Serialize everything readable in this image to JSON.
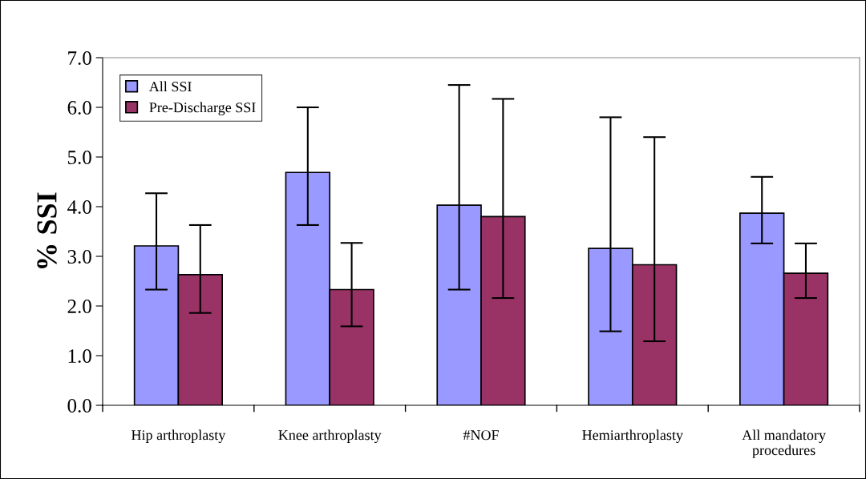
{
  "chart_data": {
    "type": "bar",
    "ylabel": "% SSI",
    "categories": [
      "Hip arthroplasty",
      "Knee arthroplasty",
      "#NOF",
      "Hemiarthroplasty",
      "All mandatory\nprocedures"
    ],
    "series": [
      {
        "name": "All SSI",
        "color": "#9999ff",
        "values": [
          3.21,
          4.69,
          4.03,
          3.16,
          3.87
        ],
        "errors": [
          [
            2.33,
            4.27
          ],
          [
            3.63,
            6.0
          ],
          [
            2.33,
            6.45
          ],
          [
            1.49,
            5.8
          ],
          [
            3.26,
            4.6
          ]
        ]
      },
      {
        "name": "Pre-Discharge SSI",
        "color": "#993366",
        "values": [
          2.63,
          2.33,
          3.8,
          2.83,
          2.66
        ],
        "errors": [
          [
            1.86,
            3.63
          ],
          [
            1.59,
            3.27
          ],
          [
            2.16,
            6.17
          ],
          [
            1.29,
            5.4
          ],
          [
            2.16,
            3.26
          ]
        ]
      }
    ],
    "ylim": [
      0,
      7
    ],
    "yticks": [
      {
        "value": 0,
        "label": "0.0"
      },
      {
        "value": 1,
        "label": "1.0"
      },
      {
        "value": 2,
        "label": "2.0"
      },
      {
        "value": 3,
        "label": "3.0"
      },
      {
        "value": 4,
        "label": "4.0"
      },
      {
        "value": 5,
        "label": "5.0"
      },
      {
        "value": 6,
        "label": "6.0"
      },
      {
        "value": 7,
        "label": "7.0"
      }
    ],
    "grid": false,
    "legend": "top left"
  }
}
